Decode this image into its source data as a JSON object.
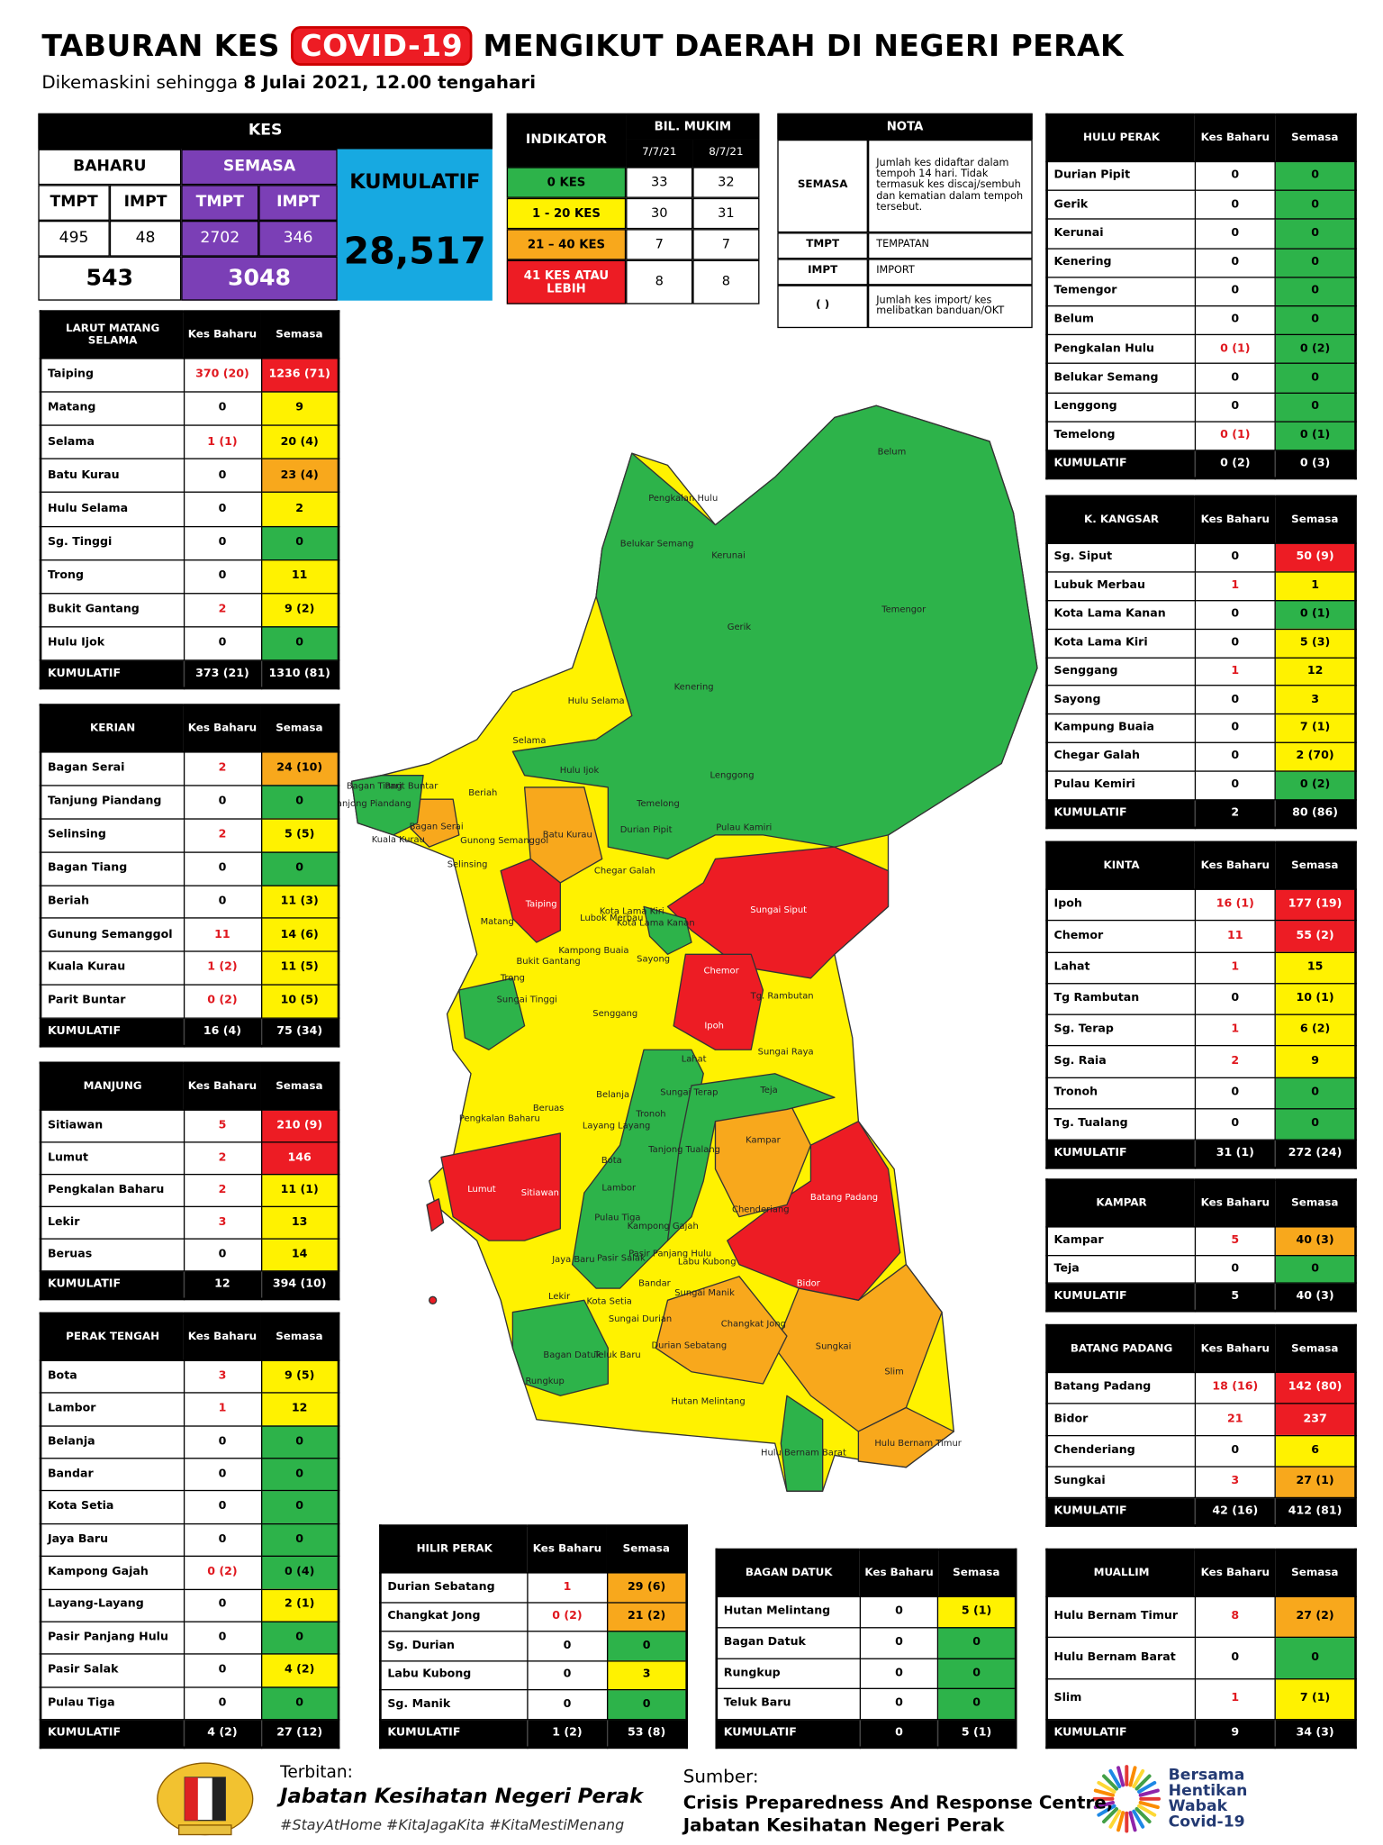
{
  "header": {
    "title_a": "TABURAN KES",
    "title_b": "COVID-19",
    "title_c": "MENGIKUT DAERAH DI NEGERI PERAK",
    "subtitle": "Dikemaskini sehingga",
    "subtitle_date": "8 Julai 2021, 12.00 tengahari"
  },
  "kes": {
    "title": "KES",
    "baharu": "BAHARU",
    "semasa": "SEMASA",
    "kumulatif": "KUMULATIF",
    "columns": [
      "TMPT",
      "IMPT",
      "TMPT",
      "IMPT"
    ],
    "values": [
      495,
      48,
      2702,
      346
    ],
    "baharu_total": 543,
    "semasa_total": 3048,
    "kumulatif_total": "28,517"
  },
  "indikator": {
    "title": "INDIKATOR",
    "count_title": "BIL. MUKIM",
    "dates": [
      "7/7/21",
      "8/7/21"
    ],
    "rows": [
      {
        "label": "0 KES",
        "color": "#2db34a",
        "values": [
          33,
          32
        ]
      },
      {
        "label": "1 - 20 KES",
        "color": "#fff200",
        "values": [
          30,
          31
        ]
      },
      {
        "label": "21 – 40 KES",
        "color": "#f8a81c",
        "values": [
          7,
          7
        ]
      },
      {
        "label": "41 KES ATAU LEBIH",
        "color": "#ed1c24",
        "values": [
          8,
          8
        ]
      }
    ]
  },
  "nota": {
    "title": "NOTA",
    "rows": [
      [
        "SEMASA",
        "Jumlah kes didaftar dalam tempoh 14 hari. Tidak termasuk kes discaj/sembuh dan kematian dalam tempoh tersebut."
      ],
      [
        "TMPT",
        "TEMPATAN"
      ],
      [
        "IMPT",
        "IMPORT"
      ],
      [
        "(     )",
        "Jumlah kes import/ kes melibatkan banduan/OKT"
      ]
    ]
  },
  "districts": [
    {
      "title": "LARUT MATANG SELAMA",
      "columns": [
        "Kes Baharu",
        "Semasa"
      ],
      "rows": [
        [
          "Taiping",
          "370 (20)",
          "1236 (71)",
          "#ed1c24"
        ],
        [
          "Matang",
          "0",
          "9",
          "#fff200"
        ],
        [
          "Selama",
          "1 (1)",
          "20 (4)",
          "#fff200"
        ],
        [
          "Batu Kurau",
          "0",
          "23 (4)",
          "#f8a81c"
        ],
        [
          "Hulu Selama",
          "0",
          "2",
          "#fff200"
        ],
        [
          "Sg. Tinggi",
          "0",
          "0",
          "#2db34a"
        ],
        [
          "Trong",
          "0",
          "11",
          "#fff200"
        ],
        [
          "Bukit Gantang",
          "2",
          "9 (2)",
          "#fff200"
        ],
        [
          "Hulu Ijok",
          "0",
          "0",
          "#2db34a"
        ]
      ],
      "total": [
        "KUMULATIF",
        "373 (21)",
        "1310 (81)"
      ]
    },
    {
      "title": "KERIAN",
      "columns": [
        "Kes Baharu",
        "Semasa"
      ],
      "rows": [
        [
          "Bagan Serai",
          "2",
          "24 (10)",
          "#f8a81c"
        ],
        [
          "Tanjung Piandang",
          "0",
          "0",
          "#2db34a"
        ],
        [
          "Selinsing",
          "2",
          "5 (5)",
          "#fff200"
        ],
        [
          "Bagan Tiang",
          "0",
          "0",
          "#2db34a"
        ],
        [
          "Beriah",
          "0",
          "11 (3)",
          "#fff200"
        ],
        [
          "Gunung Semanggol",
          "11",
          "14 (6)",
          "#fff200"
        ],
        [
          "Kuala Kurau",
          "1 (2)",
          "11 (5)",
          "#fff200"
        ],
        [
          "Parit Buntar",
          "0 (2)",
          "10 (5)",
          "#fff200"
        ]
      ],
      "total": [
        "KUMULATIF",
        "16 (4)",
        "75 (34)"
      ]
    },
    {
      "title": "MANJUNG",
      "columns": [
        "Kes Baharu",
        "Semasa"
      ],
      "rows": [
        [
          "Sitiawan",
          "5",
          "210 (9)",
          "#ed1c24"
        ],
        [
          "Lumut",
          "2",
          "146",
          "#ed1c24"
        ],
        [
          "Pengkalan Baharu",
          "2",
          "11 (1)",
          "#fff200"
        ],
        [
          "Lekir",
          "3",
          "13",
          "#fff200"
        ],
        [
          "Beruas",
          "0",
          "14",
          "#fff200"
        ]
      ],
      "total": [
        "KUMULATIF",
        "12",
        "394 (10)"
      ]
    },
    {
      "title": "PERAK TENGAH",
      "columns": [
        "Kes Baharu",
        "Semasa"
      ],
      "rows": [
        [
          "Bota",
          "3",
          "9 (5)",
          "#fff200"
        ],
        [
          "Lambor",
          "1",
          "12",
          "#fff200"
        ],
        [
          "Belanja",
          "0",
          "0",
          "#2db34a"
        ],
        [
          "Bandar",
          "0",
          "0",
          "#2db34a"
        ],
        [
          "Kota Setia",
          "0",
          "0",
          "#2db34a"
        ],
        [
          "Jaya Baru",
          "0",
          "0",
          "#2db34a"
        ],
        [
          "Kampong Gajah",
          "0 (2)",
          "0 (4)",
          "#2db34a"
        ],
        [
          "Layang-Layang",
          "0",
          "2 (1)",
          "#fff200"
        ],
        [
          "Pasir Panjang Hulu",
          "0",
          "0",
          "#2db34a"
        ],
        [
          "Pasir Salak",
          "0",
          "4 (2)",
          "#fff200"
        ],
        [
          "Pulau Tiga",
          "0",
          "0",
          "#2db34a"
        ]
      ],
      "total": [
        "KUMULATIF",
        "4 (2)",
        "27 (12)"
      ]
    },
    {
      "title": "HILIR PERAK",
      "columns": [
        "Kes Baharu",
        "Semasa"
      ],
      "rows": [
        [
          "Durian Sebatang",
          "1",
          "29 (6)",
          "#f8a81c"
        ],
        [
          "Changkat Jong",
          "0 (2)",
          "21 (2)",
          "#f8a81c"
        ],
        [
          "Sg. Durian",
          "0",
          "0",
          "#2db34a"
        ],
        [
          "Labu Kubong",
          "0",
          "3",
          "#fff200"
        ],
        [
          "Sg. Manik",
          "0",
          "0",
          "#2db34a"
        ]
      ],
      "total": [
        "KUMULATIF",
        "1 (2)",
        "53 (8)"
      ]
    },
    {
      "title": "BAGAN DATUK",
      "columns": [
        "Kes Baharu",
        "Semasa"
      ],
      "rows": [
        [
          "Hutan Melintang",
          "0",
          "5 (1)",
          "#fff200"
        ],
        [
          "Bagan Datuk",
          "0",
          "0",
          "#2db34a"
        ],
        [
          "Rungkup",
          "0",
          "0",
          "#2db34a"
        ],
        [
          "Teluk Baru",
          "0",
          "0",
          "#2db34a"
        ]
      ],
      "total": [
        "KUMULATIF",
        "0",
        "5 (1)"
      ]
    },
    {
      "title": "HULU PERAK",
      "columns": [
        "Kes Baharu",
        "Semasa"
      ],
      "rows": [
        [
          "Durian Pipit",
          "0",
          "0",
          "#2db34a"
        ],
        [
          "Gerik",
          "0",
          "0",
          "#2db34a"
        ],
        [
          "Kerunai",
          "0",
          "0",
          "#2db34a"
        ],
        [
          "Kenering",
          "0",
          "0",
          "#2db34a"
        ],
        [
          "Temengor",
          "0",
          "0",
          "#2db34a"
        ],
        [
          "Belum",
          "0",
          "0",
          "#2db34a"
        ],
        [
          "Pengkalan Hulu",
          "0 (1)",
          "0 (2)",
          "#2db34a"
        ],
        [
          "Belukar Semang",
          "0",
          "0",
          "#2db34a"
        ],
        [
          "Lenggong",
          "0",
          "0",
          "#2db34a"
        ],
        [
          "Temelong",
          "0 (1)",
          "0 (1)",
          "#2db34a"
        ]
      ],
      "total": [
        "KUMULATIF",
        "0 (2)",
        "0 (3)"
      ]
    },
    {
      "title": "K. KANGSAR",
      "columns": [
        "Kes Baharu",
        "Semasa"
      ],
      "rows": [
        [
          "Sg. Siput",
          "0",
          "50 (9)",
          "#ed1c24"
        ],
        [
          "Lubuk Merbau",
          "1",
          "1",
          "#fff200"
        ],
        [
          "Kota Lama Kanan",
          "0",
          "0 (1)",
          "#2db34a"
        ],
        [
          "Kota Lama Kiri",
          "0",
          "5 (3)",
          "#fff200"
        ],
        [
          "Senggang",
          "1",
          "12",
          "#fff200"
        ],
        [
          "Sayong",
          "0",
          "3",
          "#fff200"
        ],
        [
          "Kampung Buaia",
          "0",
          "7 (1)",
          "#fff200"
        ],
        [
          "Chegar Galah",
          "0",
          "2 (70)",
          "#fff200"
        ],
        [
          "Pulau Kemiri",
          "0",
          "0 (2)",
          "#2db34a"
        ]
      ],
      "total": [
        "KUMULATIF",
        "2",
        "80 (86)"
      ]
    },
    {
      "title": "KINTA",
      "columns": [
        "Kes Baharu",
        "Semasa"
      ],
      "rows": [
        [
          "Ipoh",
          "16 (1)",
          "177 (19)",
          "#ed1c24"
        ],
        [
          "Chemor",
          "11",
          "55 (2)",
          "#ed1c24"
        ],
        [
          "Lahat",
          "1",
          "15",
          "#fff200"
        ],
        [
          "Tg Rambutan",
          "0",
          "10 (1)",
          "#fff200"
        ],
        [
          "Sg. Terap",
          "1",
          "6 (2)",
          "#fff200"
        ],
        [
          "Sg. Raia",
          "2",
          "9",
          "#fff200"
        ],
        [
          "Tronoh",
          "0",
          "0",
          "#2db34a"
        ],
        [
          "Tg. Tualang",
          "0",
          "0",
          "#2db34a"
        ]
      ],
      "total": [
        "KUMULATIF",
        "31 (1)",
        "272 (24)"
      ]
    },
    {
      "title": "KAMPAR",
      "columns": [
        "Kes Baharu",
        "Semasa"
      ],
      "rows": [
        [
          "Kampar",
          "5",
          "40 (3)",
          "#f8a81c"
        ],
        [
          "Teja",
          "0",
          "0",
          "#2db34a"
        ]
      ],
      "total": [
        "KUMULATIF",
        "5",
        "40 (3)"
      ]
    },
    {
      "title": "BATANG PADANG",
      "columns": [
        "Kes Baharu",
        "Semasa"
      ],
      "rows": [
        [
          "Batang Padang",
          "18 (16)",
          "142 (80)",
          "#ed1c24"
        ],
        [
          "Bidor",
          "21",
          "237",
          "#ed1c24"
        ],
        [
          "Chenderiang",
          "0",
          "6",
          "#fff200"
        ],
        [
          "Sungkai",
          "3",
          "27 (1)",
          "#f8a81c"
        ]
      ],
      "total": [
        "KUMULATIF",
        "42 (16)",
        "412 (81)"
      ]
    },
    {
      "title": "MUALLIM",
      "columns": [
        "Kes Baharu",
        "Semasa"
      ],
      "rows": [
        [
          "Hulu Bernam Timur",
          "8",
          "27 (2)",
          "#f8a81c"
        ],
        [
          "Hulu Bernam Barat",
          "0",
          "0",
          "#2db34a"
        ],
        [
          "Slim",
          "1",
          "7 (1)",
          "#fff200"
        ]
      ],
      "total": [
        "KUMULATIF",
        "9",
        "34 (3)"
      ]
    }
  ],
  "map": {
    "labels": [
      "Belum",
      "Pengkalan Hulu",
      "Belukar Semang",
      "Kerunai",
      "Gerik",
      "Temengor",
      "Kenering",
      "Hulu Selama",
      "Selama",
      "Hulu Ijok",
      "Lenggong",
      "Temelong",
      "Durian Pipit",
      "Pulau Kamiri",
      "Bagan Tiang",
      "Parit Buntar",
      "Tanjong Piandang",
      "Kuala Kurau",
      "Bagan Serai",
      "Beriah",
      "Gunong Semanggol",
      "Selinsing",
      "Batu Kurau",
      "Taiping",
      "Chegar Galah",
      "Lubok Merbau",
      "Kota Lama Kiri",
      "Kota Lama Kanan",
      "Sungai Siput",
      "Matang",
      "Kampong Buaia",
      "Bukit Gantang",
      "Sayong",
      "Trong",
      "Chemor",
      "Tg. Rambutan",
      "Sungai Tinggi",
      "Senggang",
      "Ipoh",
      "Lahat",
      "Sungai Raya",
      "Sungai Terap",
      "Teja",
      "Beruas",
      "Belanja",
      "Pengkalan Baharu",
      "Layang Layang",
      "Tronoh",
      "Tanjong Tualang",
      "Kampar",
      "Bota",
      "Lumut",
      "Sitiawan",
      "Lambor",
      "Batang Padang",
      "Chenderiang",
      "Pulau Tiga",
      "Kampong Gajah",
      "Pasir Panjang Hulu",
      "Jaya Baru",
      "Pasir Salak",
      "Labu Kubong",
      "Bandar",
      "Bidor",
      "Lekir",
      "Kota Setia",
      "Sungai Manik",
      "Sungai Durian",
      "Changkat Jong",
      "Sungkai",
      "Bagan Datuk",
      "Teluk Baru",
      "Durian Sebatang",
      "Slim",
      "Rungkup",
      "Hutan Melintang",
      "Hulu Bernam Barat",
      "Hulu Bernam Timur"
    ]
  },
  "footer": {
    "terbitan_label": "Terbitan:",
    "publisher": "Jabatan Kesihatan Negeri Perak",
    "hashtags": "#StayAtHome #KitaJagaKita #KitaMestiMenang",
    "sumber_label": "Sumber:",
    "source_lines": [
      "Crisis Preparedness And Response Centre,",
      "Jabatan Kesihatan Negeri Perak"
    ],
    "campaign_lines": [
      "Bersama",
      "Hentikan",
      "Wabak",
      "Covid-19"
    ]
  }
}
